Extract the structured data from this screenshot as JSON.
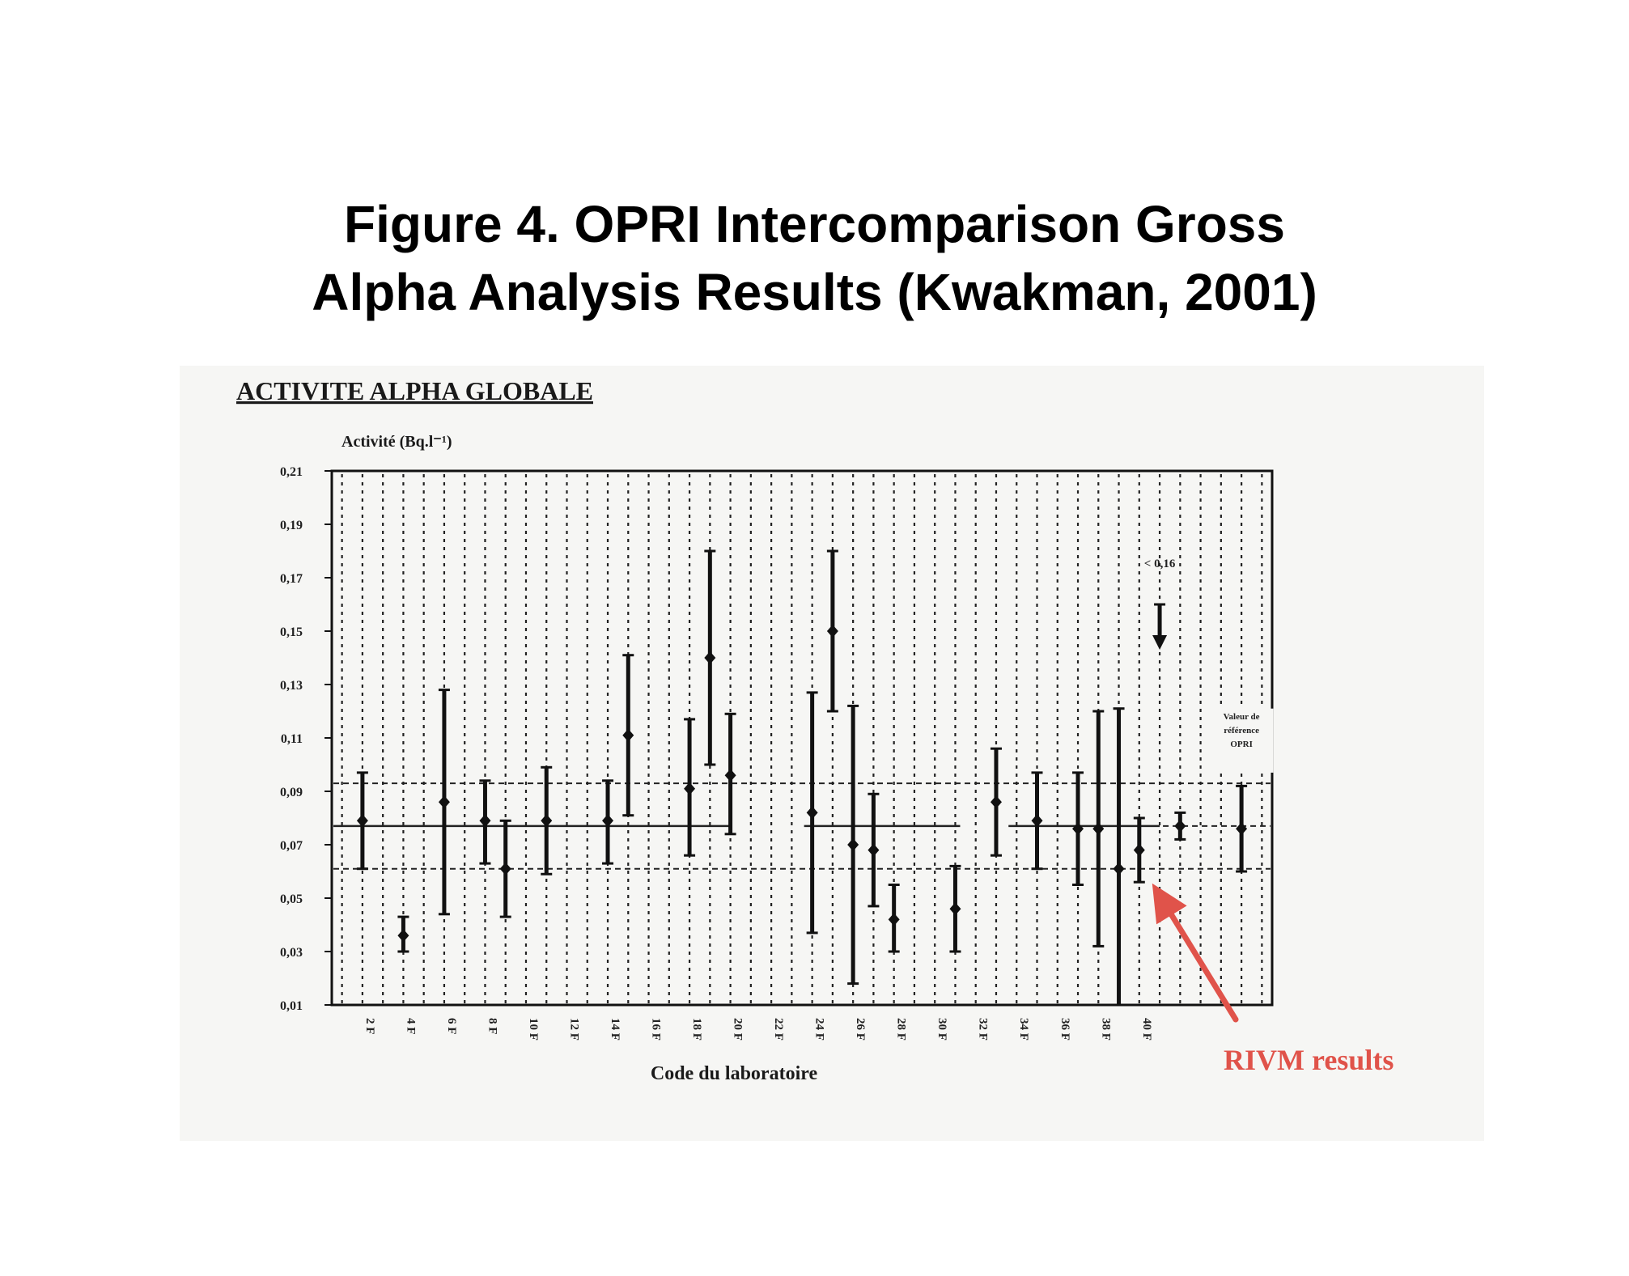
{
  "slide": {
    "title_line1": "Figure 4. OPRI Intercomparison Gross",
    "title_line2": "Alpha Analysis Results (Kwakman, 2001)"
  },
  "chart_data": {
    "type": "scatter",
    "title": "ACTIVITE ALPHA GLOBALE",
    "ylabel": "Activité (Bq.l⁻¹)",
    "xlabel": "Code du laboratoire",
    "ylim": [
      0.01,
      0.21
    ],
    "y_ticks": [
      "0,21",
      "0,19",
      "0,17",
      "0,15",
      "0,13",
      "0,11",
      "0,09",
      "0,07",
      "0,05",
      "0,03",
      "0,01"
    ],
    "x_tick_labels": [
      "2 F",
      "4 F",
      "6 F",
      "8 F",
      "10 F",
      "12 F",
      "14 F",
      "16 F",
      "18 F",
      "20 F",
      "22 F",
      "24 F",
      "26 F",
      "28 F",
      "30 F",
      "32 F",
      "34 F",
      "36 F",
      "38 F",
      "40 F"
    ],
    "grid": true,
    "measurements": [
      {
        "lab": 1,
        "value": 0.079,
        "low": 0.061,
        "high": 0.097
      },
      {
        "lab": 3,
        "value": 0.036,
        "low": 0.03,
        "high": 0.043
      },
      {
        "lab": 5,
        "value": 0.086,
        "low": 0.044,
        "high": 0.128
      },
      {
        "lab": 7,
        "value": 0.079,
        "low": 0.063,
        "high": 0.094
      },
      {
        "lab": 8,
        "value": 0.061,
        "low": 0.043,
        "high": 0.079
      },
      {
        "lab": 10,
        "value": 0.079,
        "low": 0.059,
        "high": 0.099
      },
      {
        "lab": 13,
        "value": 0.079,
        "low": 0.063,
        "high": 0.094
      },
      {
        "lab": 14,
        "value": 0.111,
        "low": 0.081,
        "high": 0.141
      },
      {
        "lab": 17,
        "value": 0.091,
        "low": 0.066,
        "high": 0.117
      },
      {
        "lab": 18,
        "value": 0.14,
        "low": 0.1,
        "high": 0.18
      },
      {
        "lab": 19,
        "value": 0.096,
        "low": 0.074,
        "high": 0.119
      },
      {
        "lab": 23,
        "value": 0.082,
        "low": 0.037,
        "high": 0.127
      },
      {
        "lab": 24,
        "value": 0.15,
        "low": 0.12,
        "high": 0.18
      },
      {
        "lab": 25,
        "value": 0.07,
        "low": 0.018,
        "high": 0.122
      },
      {
        "lab": 26,
        "value": 0.068,
        "low": 0.047,
        "high": 0.089
      },
      {
        "lab": 27,
        "value": 0.042,
        "low": 0.03,
        "high": 0.055
      },
      {
        "lab": 30,
        "value": 0.046,
        "low": 0.03,
        "high": 0.062
      },
      {
        "lab": 32,
        "value": 0.086,
        "low": 0.066,
        "high": 0.106
      },
      {
        "lab": 34,
        "value": 0.079,
        "low": 0.061,
        "high": 0.097
      },
      {
        "lab": 36,
        "value": 0.076,
        "low": 0.055,
        "high": 0.097
      },
      {
        "lab": 37,
        "value": 0.076,
        "low": 0.032,
        "high": 0.12
      },
      {
        "lab": 38,
        "value": 0.061,
        "low": 0.01,
        "high": 0.121
      },
      {
        "lab": 39,
        "value": 0.068,
        "low": 0.056,
        "high": 0.08
      },
      {
        "lab": 41,
        "value": 0.077,
        "low": 0.072,
        "high": 0.082
      }
    ],
    "upper_limit": {
      "lab": 40,
      "label": "< 0,16",
      "value": 0.16
    },
    "reference": {
      "label": "Valeur de référence OPRI",
      "value": 0.076,
      "low": 0.06,
      "high": 0.092
    },
    "reference_lines": {
      "mean": 0.077,
      "upper": 0.093,
      "lower": 0.061
    },
    "annotation": {
      "text": "RIVM results",
      "color": "#e0534a"
    }
  }
}
